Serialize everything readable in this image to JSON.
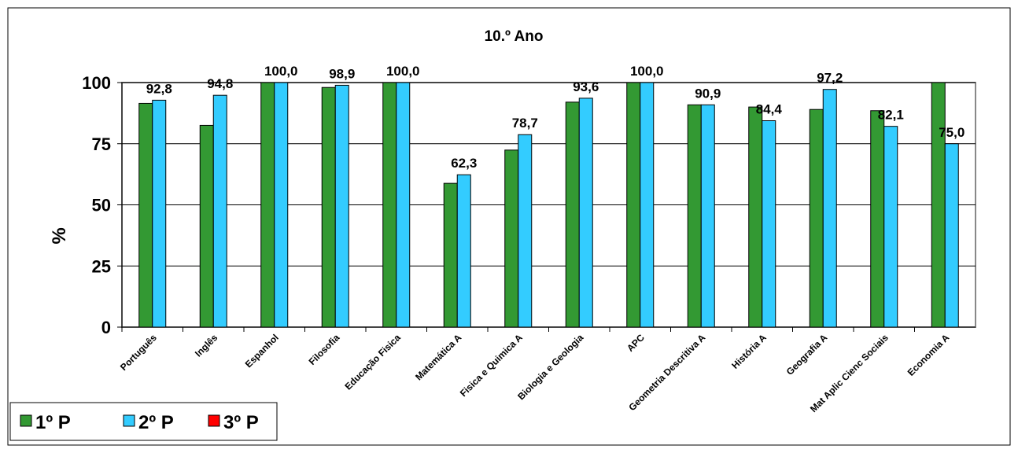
{
  "chart_data": {
    "type": "bar",
    "title": "10.º Ano",
    "y_label": "%",
    "categories": [
      "Português",
      "Inglês",
      "Espanhol",
      "Filosofia",
      "Educação Fisica",
      "Matemática A",
      "Fisica e Quimica A",
      "Biologia e Geologia",
      "APC",
      "Geometria Descritiva A",
      "História A",
      "Geografia A",
      "Mat Aplic Cienc Sociais",
      "Economia A"
    ],
    "series": [
      {
        "name": "1º P",
        "color": "#339933",
        "values": [
          91.5,
          82.5,
          100,
          98,
          100,
          58.8,
          72.4,
          92,
          100,
          90.9,
          90,
          89,
          88.5,
          100
        ]
      },
      {
        "name": "2º P",
        "color": "#33ccff",
        "values": [
          92.8,
          94.8,
          100,
          98.9,
          100,
          62.3,
          78.7,
          93.6,
          100,
          90.9,
          84.4,
          97.2,
          82.1,
          75.0
        ],
        "value_labels": [
          "92,8",
          "94,8",
          "100,0",
          "98,9",
          "100,0",
          "62,3",
          "78,7",
          "93,6",
          "100,0",
          "90,9",
          "84,4",
          "97,2",
          "82,1",
          "75,0"
        ]
      },
      {
        "name": "3º P",
        "color": "#ff0000",
        "values": [
          null,
          null,
          null,
          null,
          null,
          null,
          null,
          null,
          null,
          null,
          null,
          null,
          null,
          null
        ]
      }
    ],
    "ylim": [
      0,
      100
    ],
    "yticks": [
      0,
      25,
      50,
      75,
      100
    ],
    "grid": true
  }
}
